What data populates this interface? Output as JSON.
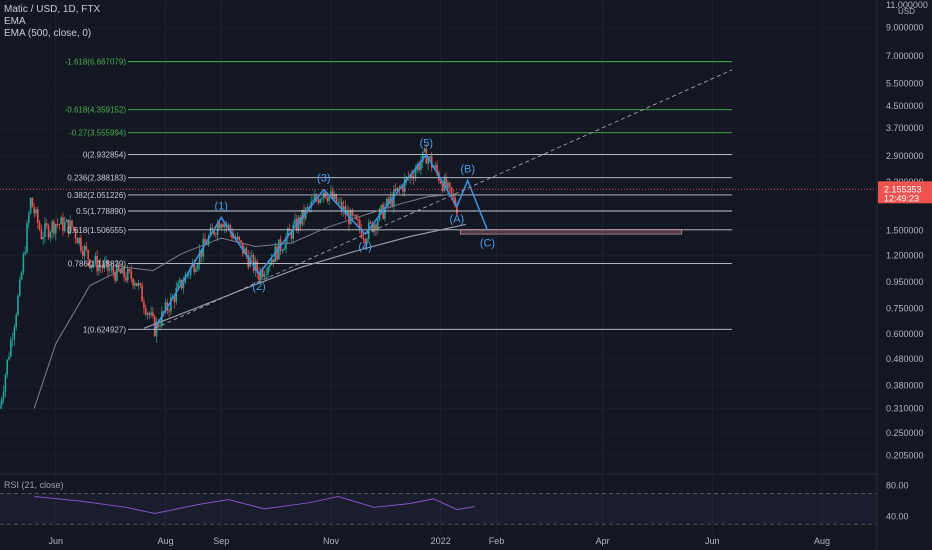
{
  "legend": {
    "symbol": "Matic / USD, 1D, FTX",
    "ema1": "EMA",
    "ema2": "EMA (500, close, 0)"
  },
  "rsi_label": "RSI (21, close)",
  "price_axis": {
    "unit": "USD",
    "ticks": [
      "11.000000",
      "9.000000",
      "7.000000",
      "5.500000",
      "4.500000",
      "3.700000",
      "2.900000",
      "2.300000",
      "1.500000",
      "1.200000",
      "0.950000",
      "0.750000",
      "0.600000",
      "0.480000",
      "0.380000",
      "0.310000",
      "0.250000",
      "0.205000"
    ],
    "current_price": "2.155353",
    "countdown": "12:49:23"
  },
  "rsi_axis": {
    "ticks": [
      "80.00",
      "40.00"
    ]
  },
  "time_axis": {
    "ticks": [
      "Jun",
      "Aug",
      "Sep",
      "Nov",
      "2022",
      "Feb",
      "Apr",
      "Jun",
      "Aug"
    ]
  },
  "fib_levels": [
    {
      "label": "-1.618(6.667079)",
      "value": 6.667079,
      "color": "#4caf50"
    },
    {
      "label": "-0.618(4.359152)",
      "value": 4.359152,
      "color": "#4caf50"
    },
    {
      "label": "-0.27(3.555994)",
      "value": 3.555994,
      "color": "#4caf50"
    },
    {
      "label": "0(2.932854)",
      "value": 2.932854,
      "color": "#c8ccd6"
    },
    {
      "label": "0.236(2.388183)",
      "value": 2.388183,
      "color": "#c8ccd6"
    },
    {
      "label": "0.382(2.051226)",
      "value": 2.051226,
      "color": "#c8ccd6"
    },
    {
      "label": "0.5(1.778890)",
      "value": 1.77889,
      "color": "#c8ccd6"
    },
    {
      "label": "0.618(1.506555)",
      "value": 1.506555,
      "color": "#c8ccd6"
    },
    {
      "label": "0.786(1.118829)",
      "value": 1.118829,
      "color": "#c8ccd6"
    },
    {
      "label": "1(0.624927)",
      "value": 0.624927,
      "color": "#c8ccd6"
    }
  ],
  "wave_labels": [
    "(1)",
    "(2)",
    "(3)",
    "(4)",
    "(5)",
    "(A)",
    "(B)",
    "(C)"
  ],
  "chart_data": {
    "type": "line",
    "title": "Matic / USD, 1D, FTX",
    "y_scale": "log",
    "ylim": [
      0.18,
      11.5
    ],
    "xlim": [
      "2021-05-01",
      "2022-08-31"
    ],
    "x_ticks": [
      "Jun",
      "Aug",
      "Sep",
      "Nov",
      "2022",
      "Feb",
      "Apr",
      "Jun",
      "Aug"
    ],
    "series": [
      {
        "name": "EMA",
        "x": [
          "2021-05-20",
          "2021-06-01",
          "2021-06-20",
          "2021-07-10",
          "2021-07-25",
          "2021-08-10",
          "2021-09-01",
          "2021-09-20",
          "2021-10-10",
          "2021-10-30",
          "2021-11-20",
          "2021-12-10",
          "2021-12-25",
          "2022-01-08"
        ],
        "values": [
          0.31,
          0.55,
          0.92,
          1.08,
          1.05,
          1.22,
          1.4,
          1.3,
          1.34,
          1.54,
          1.72,
          1.9,
          2.02,
          2.06
        ]
      },
      {
        "name": "EMA (500, close, 0)",
        "x": [
          "2021-07-20",
          "2021-08-15",
          "2021-09-15",
          "2021-10-15",
          "2021-11-15",
          "2021-12-15",
          "2022-01-15"
        ],
        "values": [
          0.63,
          0.74,
          0.9,
          1.08,
          1.25,
          1.42,
          1.58
        ]
      }
    ],
    "elliott_waves": {
      "points": [
        {
          "label": "",
          "x": "2021-07-26",
          "value": 0.63
        },
        {
          "label": "(1)",
          "x": "2021-09-01",
          "value": 1.68
        },
        {
          "label": "(2)",
          "x": "2021-09-22",
          "value": 1.02
        },
        {
          "label": "(3)",
          "x": "2021-10-28",
          "value": 2.15
        },
        {
          "label": "(4)",
          "x": "2021-11-20",
          "value": 1.45
        },
        {
          "label": "(5)",
          "x": "2021-12-24",
          "value": 2.93
        },
        {
          "label": "(A)",
          "x": "2022-01-10",
          "value": 1.85
        },
        {
          "label": "(B)",
          "x": "2022-01-16",
          "value": 2.33
        },
        {
          "label": "(C)",
          "x": "2022-01-27",
          "value": 1.5
        }
      ]
    },
    "rsi": {
      "name": "RSI (21, close)",
      "ticks": [
        80,
        40
      ],
      "levels": [
        70,
        30
      ],
      "x": [
        "2021-05-20",
        "2021-06-15",
        "2021-07-10",
        "2021-07-26",
        "2021-08-20",
        "2021-09-05",
        "2021-09-25",
        "2021-10-20",
        "2021-11-05",
        "2021-11-25",
        "2021-12-15",
        "2021-12-28",
        "2022-01-10",
        "2022-01-20"
      ],
      "values": [
        66,
        60,
        52,
        44,
        56,
        62,
        50,
        58,
        66,
        52,
        57,
        63,
        49,
        53
      ]
    },
    "current_price": 2.155353,
    "target_zone": [
      1.45,
      1.51
    ]
  }
}
